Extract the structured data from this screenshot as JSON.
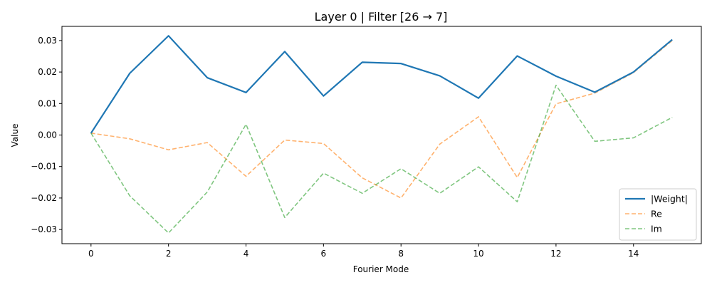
{
  "chart_data": {
    "type": "line",
    "title": "Layer 0 | Filter [26 → 7]",
    "xlabel": "Fourier Mode",
    "ylabel": "Value",
    "x": [
      0,
      1,
      2,
      3,
      4,
      5,
      6,
      7,
      8,
      9,
      10,
      11,
      12,
      13,
      14,
      15
    ],
    "xlim": [
      -0.75,
      15.75
    ],
    "ylim": [
      -0.0345,
      0.0345
    ],
    "xticks": [
      0,
      2,
      4,
      6,
      8,
      10,
      12,
      14
    ],
    "xtick_labels": [
      "0",
      "2",
      "4",
      "6",
      "8",
      "10",
      "12",
      "14"
    ],
    "yticks": [
      -0.03,
      -0.02,
      -0.01,
      0.0,
      0.01,
      0.02,
      0.03
    ],
    "ytick_labels": [
      "−0.03",
      "−0.02",
      "−0.01",
      "0.00",
      "0.01",
      "0.02",
      "0.03"
    ],
    "grid": false,
    "legend_position": "bottom-right",
    "series": [
      {
        "name": "|Weight|",
        "color": "#1f77b4",
        "style": "solid",
        "values": [
          0.0006,
          0.0196,
          0.0315,
          0.0182,
          0.0135,
          0.0265,
          0.0124,
          0.0231,
          0.0227,
          0.0188,
          0.0117,
          0.0251,
          0.0187,
          0.0136,
          0.02,
          0.0303
        ]
      },
      {
        "name": "Re",
        "color": "#ff7f0e",
        "style": "dashed",
        "values": [
          0.0006,
          -0.0012,
          -0.0047,
          -0.0024,
          -0.0131,
          -0.0016,
          -0.0027,
          -0.0136,
          -0.02,
          -0.0029,
          0.0058,
          -0.0135,
          0.0099,
          0.0133,
          0.0198,
          0.03
        ]
      },
      {
        "name": "Im",
        "color": "#2ca02c",
        "style": "dashed",
        "values": [
          0.0006,
          -0.0193,
          -0.0311,
          -0.0181,
          0.0034,
          -0.0262,
          -0.0121,
          -0.0185,
          -0.0107,
          -0.0185,
          -0.0101,
          -0.0212,
          0.0158,
          -0.002,
          -0.0009,
          0.0056
        ]
      }
    ]
  }
}
